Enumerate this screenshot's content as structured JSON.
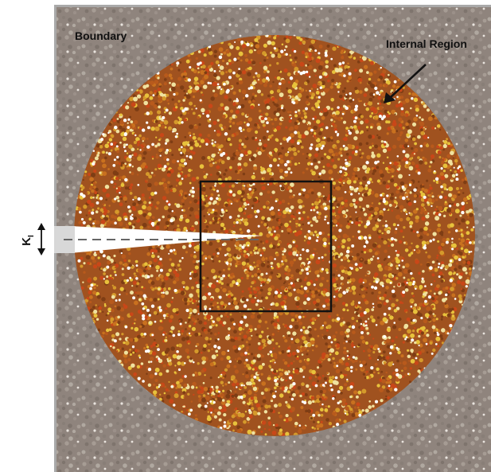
{
  "labels": {
    "boundary": "Boundary",
    "internal_region": "Internal Region",
    "loading": "K",
    "loading_subscript": "I"
  },
  "colors": {
    "background": "#ffffff",
    "boundary_fill": "#8f847d",
    "boundary_edge": "#a9a9a9",
    "internal_base": "#a0521f",
    "particle_palette": [
      "#c9711f",
      "#d59a2b",
      "#c94718",
      "#e8c23c",
      "#b85a1c",
      "#f0e2a0",
      "#7e3d14"
    ],
    "boundary_particle_palette": [
      "#9b9089",
      "#7e746d",
      "#a69c94",
      "#887e77",
      "#b0a8a0"
    ],
    "crack": "#d8d8d8",
    "crack_line": "#666666",
    "box": "#111111"
  }
}
